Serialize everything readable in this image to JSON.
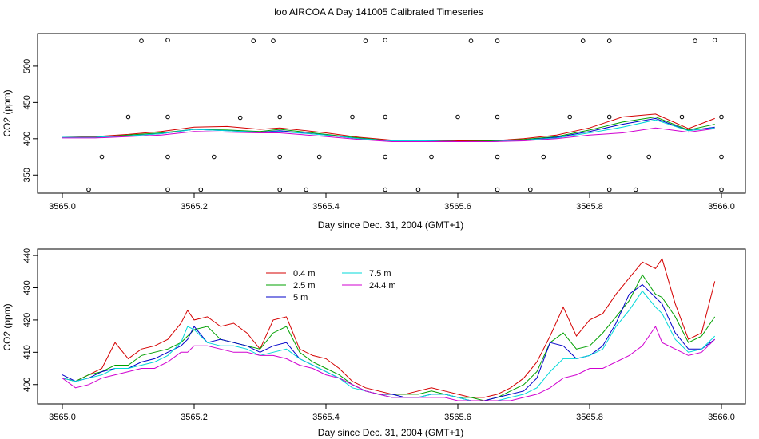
{
  "title": "loo AIRCOA A  Day 141005  Calibrated Timeseries",
  "chart_data": [
    {
      "type": "scatter+line",
      "ylabel": "CO2 (ppm)",
      "xlabel": "Day since Dec. 31, 2004 (GMT+1)",
      "xlim": [
        3565.0,
        3566.0
      ],
      "ylim": [
        325,
        545
      ],
      "x_ticks": [
        "3565.0",
        "3565.2",
        "3565.4",
        "3565.6",
        "3565.8",
        "3566.0"
      ],
      "y_ticks": [
        "350",
        "400",
        "450",
        "500"
      ],
      "series": [
        {
          "name": "0.4 m",
          "color": "#d40000",
          "x": [
            3565.0,
            3565.05,
            3565.1,
            3565.15,
            3565.2,
            3565.25,
            3565.3,
            3565.33,
            3565.4,
            3565.45,
            3565.5,
            3565.55,
            3565.6,
            3565.65,
            3565.7,
            3565.75,
            3565.8,
            3565.85,
            3565.9,
            3565.95,
            3565.99
          ],
          "y": [
            402,
            403,
            406,
            410,
            416,
            417,
            413,
            415,
            408,
            402,
            398,
            398,
            397,
            397,
            400,
            405,
            415,
            430,
            434,
            414,
            428
          ]
        },
        {
          "name": "2.5 m",
          "color": "#00a000",
          "x": [
            3565.0,
            3565.05,
            3565.1,
            3565.15,
            3565.2,
            3565.25,
            3565.3,
            3565.33,
            3565.4,
            3565.45,
            3565.5,
            3565.55,
            3565.6,
            3565.65,
            3565.7,
            3565.75,
            3565.8,
            3565.85,
            3565.9,
            3565.95,
            3565.99
          ],
          "y": [
            402,
            402,
            405,
            408,
            413,
            412,
            410,
            413,
            406,
            401,
            397,
            397,
            396,
            397,
            399,
            403,
            412,
            423,
            430,
            412,
            420
          ]
        },
        {
          "name": "5 m",
          "color": "#0000c8",
          "x": [
            3565.0,
            3565.05,
            3565.1,
            3565.15,
            3565.2,
            3565.25,
            3565.3,
            3565.33,
            3565.4,
            3565.45,
            3565.5,
            3565.55,
            3565.6,
            3565.65,
            3565.7,
            3565.75,
            3565.8,
            3565.85,
            3565.9,
            3565.95,
            3565.99
          ],
          "y": [
            402,
            402,
            404,
            407,
            413,
            411,
            409,
            411,
            405,
            400,
            397,
            397,
            396,
            396,
            398,
            402,
            410,
            420,
            428,
            411,
            416
          ]
        },
        {
          "name": "7.5 m",
          "color": "#00d8d8",
          "x": [
            3565.0,
            3565.05,
            3565.1,
            3565.15,
            3565.2,
            3565.25,
            3565.3,
            3565.33,
            3565.4,
            3565.45,
            3565.5,
            3565.55,
            3565.6,
            3565.65,
            3565.7,
            3565.75,
            3565.8,
            3565.85,
            3565.9,
            3565.95,
            3565.99
          ],
          "y": [
            402,
            402,
            404,
            407,
            413,
            411,
            409,
            410,
            405,
            400,
            397,
            397,
            396,
            396,
            398,
            401,
            408,
            416,
            426,
            411,
            415
          ]
        },
        {
          "name": "24.4 m",
          "color": "#d000d0",
          "x": [
            3565.0,
            3565.05,
            3565.1,
            3565.15,
            3565.2,
            3565.25,
            3565.3,
            3565.33,
            3565.4,
            3565.45,
            3565.5,
            3565.55,
            3565.6,
            3565.65,
            3565.7,
            3565.75,
            3565.8,
            3565.85,
            3565.9,
            3565.95,
            3565.99
          ],
          "y": [
            401,
            401,
            403,
            405,
            410,
            409,
            408,
            408,
            403,
            399,
            396,
            396,
            396,
            396,
            397,
            400,
            405,
            408,
            415,
            409,
            414
          ]
        }
      ],
      "flag_points": [
        {
          "x": 3565.12,
          "y": 535
        },
        {
          "x": 3565.16,
          "y": 536
        },
        {
          "x": 3565.29,
          "y": 535
        },
        {
          "x": 3565.32,
          "y": 535
        },
        {
          "x": 3565.46,
          "y": 535
        },
        {
          "x": 3565.49,
          "y": 536
        },
        {
          "x": 3565.62,
          "y": 535
        },
        {
          "x": 3565.66,
          "y": 535
        },
        {
          "x": 3565.79,
          "y": 535
        },
        {
          "x": 3565.83,
          "y": 535
        },
        {
          "x": 3565.96,
          "y": 535
        },
        {
          "x": 3565.99,
          "y": 536
        },
        {
          "x": 3565.1,
          "y": 430
        },
        {
          "x": 3565.16,
          "y": 430
        },
        {
          "x": 3565.27,
          "y": 429
        },
        {
          "x": 3565.33,
          "y": 430
        },
        {
          "x": 3565.44,
          "y": 430
        },
        {
          "x": 3565.49,
          "y": 430
        },
        {
          "x": 3565.6,
          "y": 430
        },
        {
          "x": 3565.66,
          "y": 430
        },
        {
          "x": 3565.77,
          "y": 430
        },
        {
          "x": 3565.83,
          "y": 430
        },
        {
          "x": 3565.94,
          "y": 430
        },
        {
          "x": 3566.0,
          "y": 430
        },
        {
          "x": 3565.06,
          "y": 375
        },
        {
          "x": 3565.16,
          "y": 375
        },
        {
          "x": 3565.23,
          "y": 375
        },
        {
          "x": 3565.33,
          "y": 375
        },
        {
          "x": 3565.39,
          "y": 375
        },
        {
          "x": 3565.49,
          "y": 375
        },
        {
          "x": 3565.56,
          "y": 375
        },
        {
          "x": 3565.66,
          "y": 375
        },
        {
          "x": 3565.73,
          "y": 375
        },
        {
          "x": 3565.83,
          "y": 375
        },
        {
          "x": 3565.89,
          "y": 375
        },
        {
          "x": 3566.0,
          "y": 375
        },
        {
          "x": 3565.04,
          "y": 330
        },
        {
          "x": 3565.16,
          "y": 330
        },
        {
          "x": 3565.21,
          "y": 330
        },
        {
          "x": 3565.33,
          "y": 330
        },
        {
          "x": 3565.37,
          "y": 330
        },
        {
          "x": 3565.49,
          "y": 330
        },
        {
          "x": 3565.54,
          "y": 330
        },
        {
          "x": 3565.66,
          "y": 330
        },
        {
          "x": 3565.71,
          "y": 330
        },
        {
          "x": 3565.83,
          "y": 330
        },
        {
          "x": 3565.87,
          "y": 330
        },
        {
          "x": 3566.0,
          "y": 330
        }
      ]
    },
    {
      "type": "line",
      "ylabel": "CO2 (ppm)",
      "xlabel": "Day since Dec. 31, 2004 (GMT+1)",
      "xlim": [
        3565.0,
        3566.0
      ],
      "ylim": [
        394,
        442
      ],
      "x_ticks": [
        "3565.0",
        "3565.2",
        "3565.4",
        "3565.6",
        "3565.8",
        "3566.0"
      ],
      "y_ticks": [
        "400",
        "410",
        "420",
        "430",
        "440"
      ],
      "legend": "top-left",
      "series": [
        {
          "name": "0.4 m",
          "color": "#d40000",
          "x": [
            3565.0,
            3565.02,
            3565.04,
            3565.06,
            3565.08,
            3565.1,
            3565.12,
            3565.14,
            3565.16,
            3565.18,
            3565.19,
            3565.2,
            3565.22,
            3565.24,
            3565.26,
            3565.28,
            3565.3,
            3565.32,
            3565.34,
            3565.36,
            3565.38,
            3565.4,
            3565.42,
            3565.44,
            3565.46,
            3565.48,
            3565.5,
            3565.52,
            3565.54,
            3565.56,
            3565.58,
            3565.6,
            3565.62,
            3565.64,
            3565.66,
            3565.68,
            3565.7,
            3565.72,
            3565.74,
            3565.76,
            3565.78,
            3565.8,
            3565.82,
            3565.84,
            3565.86,
            3565.88,
            3565.9,
            3565.91,
            3565.93,
            3565.95,
            3565.97,
            3565.99
          ],
          "y": [
            402,
            401,
            403,
            405,
            413,
            408,
            411,
            412,
            414,
            419,
            423,
            420,
            421,
            418,
            419,
            416,
            411,
            420,
            421,
            411,
            409,
            408,
            405,
            401,
            399,
            398,
            397,
            397,
            398,
            399,
            398,
            397,
            396,
            396,
            397,
            399,
            402,
            407,
            415,
            424,
            415,
            420,
            422,
            428,
            433,
            438,
            436,
            439,
            425,
            414,
            416,
            432
          ]
        },
        {
          "name": "2.5 m",
          "color": "#00a000",
          "x": [
            3565.0,
            3565.02,
            3565.04,
            3565.06,
            3565.08,
            3565.1,
            3565.12,
            3565.14,
            3565.16,
            3565.18,
            3565.19,
            3565.2,
            3565.22,
            3565.24,
            3565.26,
            3565.28,
            3565.3,
            3565.32,
            3565.34,
            3565.36,
            3565.38,
            3565.4,
            3565.42,
            3565.44,
            3565.46,
            3565.48,
            3565.5,
            3565.52,
            3565.54,
            3565.56,
            3565.58,
            3565.6,
            3565.62,
            3565.64,
            3565.66,
            3565.68,
            3565.7,
            3565.72,
            3565.74,
            3565.76,
            3565.78,
            3565.8,
            3565.82,
            3565.84,
            3565.86,
            3565.88,
            3565.9,
            3565.91,
            3565.93,
            3565.95,
            3565.97,
            3565.99
          ],
          "y": [
            402,
            401,
            403,
            404,
            406,
            406,
            409,
            410,
            411,
            413,
            415,
            417,
            418,
            414,
            413,
            412,
            411,
            416,
            418,
            410,
            407,
            405,
            403,
            400,
            398,
            397,
            397,
            397,
            397,
            398,
            397,
            396,
            396,
            395,
            396,
            398,
            400,
            404,
            413,
            416,
            411,
            412,
            416,
            421,
            426,
            434,
            428,
            427,
            421,
            413,
            415,
            421
          ]
        },
        {
          "name": "5 m",
          "color": "#0000c8",
          "x": [
            3565.0,
            3565.02,
            3565.04,
            3565.06,
            3565.08,
            3565.1,
            3565.12,
            3565.14,
            3565.16,
            3565.18,
            3565.19,
            3565.2,
            3565.22,
            3565.24,
            3565.26,
            3565.28,
            3565.3,
            3565.32,
            3565.34,
            3565.36,
            3565.38,
            3565.4,
            3565.42,
            3565.44,
            3565.46,
            3565.48,
            3565.5,
            3565.52,
            3565.54,
            3565.56,
            3565.58,
            3565.6,
            3565.62,
            3565.64,
            3565.66,
            3565.68,
            3565.7,
            3565.72,
            3565.74,
            3565.76,
            3565.78,
            3565.8,
            3565.82,
            3565.84,
            3565.86,
            3565.88,
            3565.9,
            3565.91,
            3565.93,
            3565.95,
            3565.97,
            3565.99
          ],
          "y": [
            403,
            401,
            402,
            404,
            405,
            405,
            407,
            408,
            410,
            412,
            414,
            418,
            413,
            414,
            413,
            412,
            410,
            412,
            413,
            408,
            406,
            404,
            402,
            400,
            398,
            397,
            397,
            396,
            396,
            397,
            397,
            396,
            395,
            395,
            396,
            397,
            398,
            402,
            413,
            412,
            408,
            409,
            412,
            419,
            428,
            431,
            427,
            425,
            416,
            411,
            411,
            414
          ]
        },
        {
          "name": "7.5 m",
          "color": "#00d8d8",
          "x": [
            3565.0,
            3565.02,
            3565.04,
            3565.06,
            3565.08,
            3565.1,
            3565.12,
            3565.14,
            3565.16,
            3565.18,
            3565.19,
            3565.2,
            3565.22,
            3565.24,
            3565.26,
            3565.28,
            3565.3,
            3565.32,
            3565.34,
            3565.36,
            3565.38,
            3565.4,
            3565.42,
            3565.44,
            3565.46,
            3565.48,
            3565.5,
            3565.52,
            3565.54,
            3565.56,
            3565.58,
            3565.6,
            3565.62,
            3565.64,
            3565.66,
            3565.68,
            3565.7,
            3565.72,
            3565.74,
            3565.76,
            3565.78,
            3565.8,
            3565.82,
            3565.84,
            3565.86,
            3565.88,
            3565.9,
            3565.91,
            3565.93,
            3565.95,
            3565.97,
            3565.99
          ],
          "y": [
            402,
            401,
            402,
            403,
            405,
            405,
            406,
            407,
            409,
            413,
            418,
            417,
            413,
            412,
            412,
            411,
            409,
            410,
            411,
            408,
            406,
            404,
            402,
            399,
            398,
            397,
            396,
            396,
            396,
            397,
            397,
            396,
            395,
            395,
            395,
            396,
            397,
            399,
            404,
            408,
            408,
            409,
            411,
            418,
            423,
            429,
            424,
            422,
            414,
            410,
            411,
            415
          ]
        },
        {
          "name": "24.4 m",
          "color": "#d000d0",
          "x": [
            3565.0,
            3565.02,
            3565.04,
            3565.06,
            3565.08,
            3565.1,
            3565.12,
            3565.14,
            3565.16,
            3565.18,
            3565.19,
            3565.2,
            3565.22,
            3565.24,
            3565.26,
            3565.28,
            3565.3,
            3565.32,
            3565.34,
            3565.36,
            3565.38,
            3565.4,
            3565.42,
            3565.44,
            3565.46,
            3565.48,
            3565.5,
            3565.52,
            3565.54,
            3565.56,
            3565.58,
            3565.6,
            3565.62,
            3565.64,
            3565.66,
            3565.68,
            3565.7,
            3565.72,
            3565.74,
            3565.76,
            3565.78,
            3565.8,
            3565.82,
            3565.84,
            3565.86,
            3565.88,
            3565.9,
            3565.91,
            3565.93,
            3565.95,
            3565.97,
            3565.99
          ],
          "y": [
            402,
            399,
            400,
            402,
            403,
            404,
            405,
            405,
            407,
            410,
            410,
            412,
            412,
            411,
            410,
            410,
            409,
            409,
            408,
            406,
            405,
            403,
            402,
            400,
            398,
            397,
            396,
            396,
            396,
            396,
            396,
            395,
            395,
            395,
            395,
            395,
            396,
            397,
            399,
            402,
            403,
            405,
            405,
            407,
            409,
            412,
            418,
            413,
            411,
            409,
            410,
            414
          ]
        }
      ]
    }
  ]
}
